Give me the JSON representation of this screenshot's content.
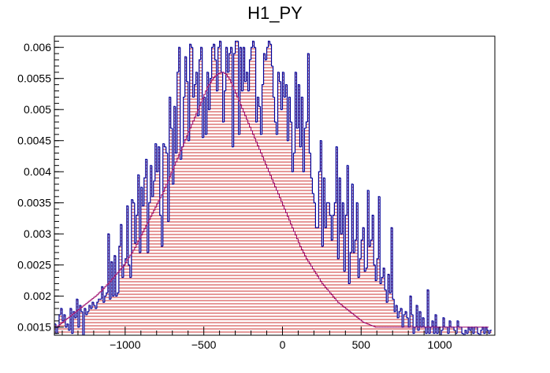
{
  "chart_data": {
    "type": "histogram",
    "title": "H1_PY",
    "xlabel": "",
    "ylabel": "",
    "xlim": [
      -1450,
      1350
    ],
    "ylim": [
      0.00137,
      0.00618
    ],
    "grid": false,
    "legend": "none",
    "x_ticks": [
      -1000,
      -500,
      0,
      500,
      1000
    ],
    "x_tick_labels": [
      "−1000",
      "−500",
      "0",
      "500",
      "1000"
    ],
    "y_ticks": [
      0.0015,
      0.002,
      0.0025,
      0.003,
      0.0035,
      0.004,
      0.0045,
      0.005,
      0.0055,
      0.006
    ],
    "y_tick_labels": [
      "0.0015",
      "0.002",
      "0.0025",
      "0.003",
      "0.0035",
      "0.004",
      "0.0045",
      "0.005",
      "0.0055",
      "0.006"
    ],
    "bin_width": 10,
    "bin_start": -1450,
    "series": [
      {
        "style": "outline-blue-hatched",
        "color": "#000099",
        "values": [
          0.00155,
          0.0014,
          0.0015,
          0.0017,
          0.0018,
          0.0016,
          0.0017,
          0.0015,
          0.00155,
          0.00145,
          0.0018,
          0.0014,
          0.00175,
          0.00165,
          0.00195,
          0.0015,
          0.00185,
          0.00175,
          0.00135,
          0.0018,
          0.0017,
          0.00175,
          0.00185,
          0.0018,
          0.0019,
          0.00185,
          0.0018,
          0.0019,
          0.00195,
          0.00195,
          0.00215,
          0.0019,
          0.002,
          0.00205,
          0.003,
          0.00195,
          0.00255,
          0.002,
          0.00265,
          0.002,
          0.00205,
          0.0028,
          0.00315,
          0.0023,
          0.0025,
          0.0026,
          0.00345,
          0.0025,
          0.0023,
          0.00355,
          0.0035,
          0.00285,
          0.0033,
          0.00395,
          0.0027,
          0.00375,
          0.00345,
          0.0039,
          0.0042,
          0.0027,
          0.0035,
          0.0041,
          0.0036,
          0.00385,
          0.00445,
          0.004,
          0.0044,
          0.0033,
          0.0028,
          0.00445,
          0.0044,
          0.0043,
          0.0032,
          0.0052,
          0.0047,
          0.0038,
          0.00505,
          0.0043,
          0.0056,
          0.006,
          0.0042,
          0.0044,
          0.0052,
          0.00585,
          0.00545,
          0.0045,
          0.00605,
          0.006,
          0.0052,
          0.0054,
          0.0056,
          0.0049,
          0.0058,
          0.006,
          0.00455,
          0.0052,
          0.0046,
          0.0056,
          0.005,
          0.0055,
          0.006,
          0.00605,
          0.0058,
          0.0053,
          0.006,
          0.0061,
          0.0056,
          0.0048,
          0.0053,
          0.006,
          0.0056,
          0.0059,
          0.006,
          0.0044,
          0.0059,
          0.0061,
          0.0061,
          0.0046,
          0.006,
          0.0053,
          0.006,
          0.00545,
          0.0056,
          0.0053,
          0.0058,
          0.006,
          0.0061,
          0.006,
          0.0048,
          0.0052,
          0.00505,
          0.0046,
          0.0054,
          0.0059,
          0.0058,
          0.006,
          0.0061,
          0.00605,
          0.0057,
          0.0052,
          0.0048,
          0.0046,
          0.0056,
          0.00545,
          0.005,
          0.0056,
          0.0052,
          0.0054,
          0.0045,
          0.0052,
          0.0048,
          0.004,
          0.0043,
          0.0056,
          0.0047,
          0.0054,
          0.0044,
          0.0052,
          0.004,
          0.0047,
          0.0048,
          0.0059,
          0.0043,
          0.0039,
          0.00365,
          0.0035,
          0.0031,
          0.0031,
          0.004,
          0.0045,
          0.0028,
          0.0039,
          0.0031,
          0.0035,
          0.0035,
          0.0033,
          0.0029,
          0.0033,
          0.0035,
          0.0044,
          0.0026,
          0.0039,
          0.003,
          0.0035,
          0.0024,
          0.0033,
          0.0041,
          0.0022,
          0.0027,
          0.0038,
          0.0027,
          0.0029,
          0.0035,
          0.0023,
          0.0026,
          0.0029,
          0.0031,
          0.0024,
          0.00245,
          0.0037,
          0.0028,
          0.0029,
          0.0033,
          0.0025,
          0.00225,
          0.0026,
          0.0036,
          0.0022,
          0.0023,
          0.00245,
          0.0021,
          0.0019,
          0.00235,
          0.00205,
          0.0031,
          0.00195,
          0.00175,
          0.00185,
          0.00165,
          0.00175,
          0.0018,
          0.0015,
          0.0017,
          0.00175,
          0.00165,
          0.0015,
          0.002,
          0.0017,
          0.0014,
          0.0015,
          0.00185,
          0.00145,
          0.00175,
          0.0015,
          0.00165,
          0.0015,
          0.0014,
          0.0021,
          0.0014,
          0.0015,
          0.0016,
          0.0014,
          0.0017,
          0.0014,
          0.0015,
          0.00135,
          0.00145,
          0.00165,
          0.0015,
          0.0015,
          0.0014,
          0.0016,
          0.0015,
          0.0015,
          0.00145,
          0.0014,
          0.0016,
          0.0015,
          0.0015,
          0.0014,
          0.00135,
          0.00145,
          0.0014,
          0.0015,
          0.00145,
          0.0015,
          0.0014,
          0.0015,
          0.0015,
          0.0014,
          0.00135,
          0.00145,
          0.0015,
          0.0014,
          0.0015,
          0.00145,
          0.0014,
          0.00145
        ]
      },
      {
        "style": "outline-smooth",
        "color": "#990066",
        "values": [
          0.0015,
          0.0015,
          0.00152,
          0.00154,
          0.00156,
          0.00158,
          0.0016,
          0.00162,
          0.00164,
          0.00166,
          0.00168,
          0.0017,
          0.00172,
          0.00174,
          0.00176,
          0.00178,
          0.0018,
          0.00182,
          0.00184,
          0.00186,
          0.00188,
          0.0019,
          0.00192,
          0.00194,
          0.00196,
          0.00198,
          0.002,
          0.00202,
          0.00205,
          0.00207,
          0.0021,
          0.00212,
          0.00215,
          0.00218,
          0.0022,
          0.00223,
          0.00226,
          0.00229,
          0.00232,
          0.00235,
          0.00238,
          0.00241,
          0.00244,
          0.00247,
          0.0025,
          0.00254,
          0.00258,
          0.00262,
          0.00266,
          0.0027,
          0.00274,
          0.00278,
          0.00283,
          0.00288,
          0.00293,
          0.00298,
          0.00303,
          0.00308,
          0.00313,
          0.00318,
          0.00323,
          0.00328,
          0.00333,
          0.00338,
          0.00343,
          0.00348,
          0.00353,
          0.00358,
          0.00363,
          0.00368,
          0.00374,
          0.0038,
          0.00386,
          0.00392,
          0.00398,
          0.00404,
          0.0041,
          0.00416,
          0.00422,
          0.00428,
          0.00434,
          0.0044,
          0.00446,
          0.00452,
          0.00458,
          0.00464,
          0.0047,
          0.00476,
          0.00482,
          0.00488,
          0.00494,
          0.005,
          0.00506,
          0.00512,
          0.00518,
          0.00524,
          0.0053,
          0.00536,
          0.0054,
          0.00544,
          0.00548,
          0.00551,
          0.00554,
          0.00556,
          0.00558,
          0.00559,
          0.0056,
          0.0056,
          0.00558,
          0.00556,
          0.00553,
          0.00549,
          0.00544,
          0.00538,
          0.00532,
          0.00526,
          0.0052,
          0.00514,
          0.00508,
          0.00502,
          0.00496,
          0.0049,
          0.00484,
          0.00478,
          0.00472,
          0.00466,
          0.0046,
          0.00454,
          0.00448,
          0.00442,
          0.00436,
          0.0043,
          0.00424,
          0.00418,
          0.00412,
          0.00406,
          0.004,
          0.00394,
          0.00388,
          0.00382,
          0.00376,
          0.0037,
          0.00364,
          0.00358,
          0.00352,
          0.00346,
          0.0034,
          0.00334,
          0.00328,
          0.00322,
          0.00316,
          0.0031,
          0.00304,
          0.00298,
          0.00292,
          0.00286,
          0.0028,
          0.00275,
          0.0027,
          0.00265,
          0.0026,
          0.00256,
          0.00252,
          0.00248,
          0.00244,
          0.0024,
          0.00236,
          0.00232,
          0.00228,
          0.00224,
          0.0022,
          0.00217,
          0.00214,
          0.00211,
          0.00208,
          0.00205,
          0.00202,
          0.00199,
          0.00196,
          0.00193,
          0.0019,
          0.00188,
          0.00186,
          0.00184,
          0.00182,
          0.0018,
          0.00178,
          0.00176,
          0.00174,
          0.00172,
          0.0017,
          0.00168,
          0.00166,
          0.00164,
          0.00162,
          0.0016,
          0.00158,
          0.00157,
          0.00156,
          0.00155,
          0.00154,
          0.00153,
          0.00152,
          0.00151,
          0.0015,
          0.0015,
          0.0015,
          0.0015,
          0.0015,
          0.0015,
          0.0015,
          0.0015,
          0.0015,
          0.0015,
          0.0015,
          0.0015,
          0.0015,
          0.0015,
          0.0015,
          0.0015,
          0.0015,
          0.0015,
          0.0015,
          0.0015,
          0.0015,
          0.0015,
          0.0015,
          0.0015,
          0.0015,
          0.0015,
          0.0015,
          0.0015,
          0.0015,
          0.0015,
          0.0015,
          0.0015,
          0.0015,
          0.0015,
          0.0015,
          0.0015,
          0.0015,
          0.0015,
          0.0015,
          0.0015,
          0.0015,
          0.0015,
          0.0015,
          0.0015,
          0.0015,
          0.0015,
          0.0015,
          0.0015,
          0.0015,
          0.0015,
          0.0015,
          0.0015,
          0.0015,
          0.0015,
          0.0015,
          0.0015,
          0.0015,
          0.0015,
          0.0015,
          0.0015,
          0.0015,
          0.0015,
          0.0015,
          0.0015,
          0.0015,
          0.0015,
          0.0015,
          0.0015,
          0.0015,
          0.0015,
          0.0015,
          0.0015
        ]
      }
    ]
  }
}
